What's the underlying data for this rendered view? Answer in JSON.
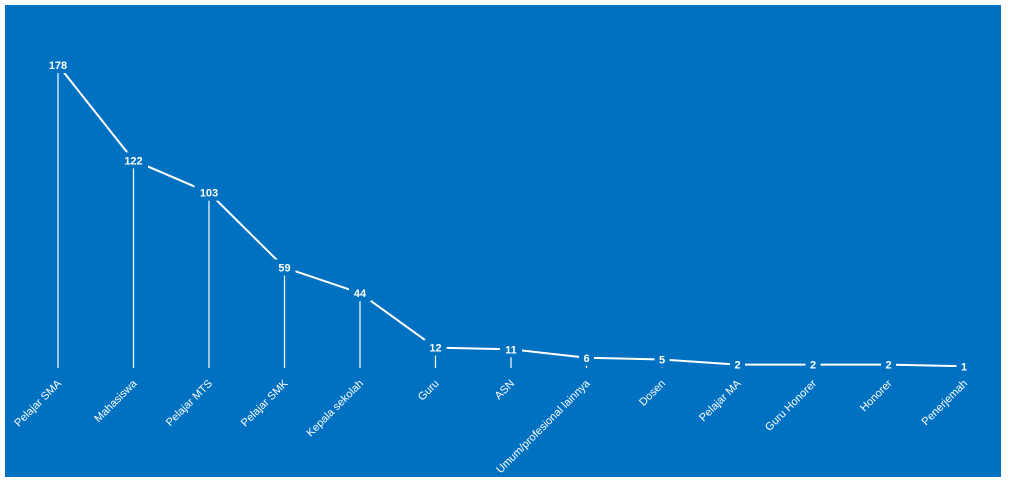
{
  "chart_data": {
    "type": "line",
    "categories": [
      "Pelajar SMA",
      "Mahasiswa",
      "Pelajar MTS",
      "Pelajar SMK",
      "Kepala sekolah",
      "Guru",
      "ASN",
      "Umum/profesional lainnya",
      "Dosen",
      "Pelajar MA",
      "Guru Honorer",
      "Honorer",
      "Penerjemah"
    ],
    "values": [
      178,
      122,
      103,
      59,
      44,
      12,
      11,
      6,
      5,
      2,
      2,
      2,
      1
    ],
    "title": "",
    "xlabel": "",
    "ylabel": "",
    "ylim": [
      0,
      178
    ],
    "grid": false,
    "legend": "none",
    "data_labels": true,
    "drop_lines": true,
    "colors": {
      "background": "#0070c0",
      "line": "#ffffff",
      "text": "#ffffff"
    }
  }
}
